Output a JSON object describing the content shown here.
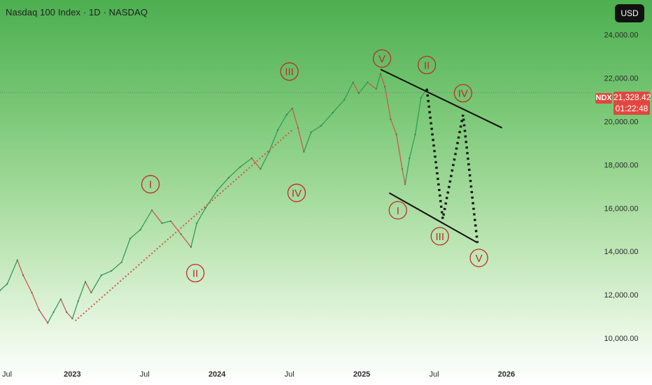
{
  "header": {
    "title": "Nasdaq 100 Index · 1D · NASDAQ",
    "currency_button": "USD"
  },
  "price_tag": {
    "symbol": "NDX",
    "last_price": "21,328.42",
    "countdown": "01:22:48",
    "color": "#e0473f"
  },
  "chart_data": {
    "type": "line",
    "title": "Nasdaq 100 Index · 1D · NASDAQ",
    "ylim": [
      9000,
      25600
    ],
    "xlim": [
      2022.5,
      2026.6
    ],
    "y_ticks": [
      {
        "value": 10000,
        "label": "10,000.00"
      },
      {
        "value": 12000,
        "label": "12,000.00"
      },
      {
        "value": 14000,
        "label": "14,000.00"
      },
      {
        "value": 16000,
        "label": "16,000.00"
      },
      {
        "value": 18000,
        "label": "18,000.00"
      },
      {
        "value": 20000,
        "label": "20,000.00"
      },
      {
        "value": 22000,
        "label": "22,000.00"
      },
      {
        "value": 24000,
        "label": "24,000.00"
      }
    ],
    "x_ticks": [
      {
        "value": 2022.5,
        "label": "Jul"
      },
      {
        "value": 2023.0,
        "label": "2023"
      },
      {
        "value": 2023.5,
        "label": "Jul"
      },
      {
        "value": 2024.0,
        "label": "2024"
      },
      {
        "value": 2024.5,
        "label": "Jul"
      },
      {
        "value": 2025.0,
        "label": "2025"
      },
      {
        "value": 2025.5,
        "label": "Jul"
      },
      {
        "value": 2026.0,
        "label": "2026"
      }
    ],
    "series": [
      {
        "points": [
          [
            2022.5,
            12200
          ],
          [
            2022.55,
            12500
          ],
          [
            2022.62,
            13600
          ],
          [
            2022.66,
            12900
          ],
          [
            2022.72,
            12100
          ],
          [
            2022.77,
            11300
          ],
          [
            2022.83,
            10700
          ],
          [
            2022.87,
            11200
          ],
          [
            2022.92,
            11800
          ],
          [
            2022.96,
            11200
          ],
          [
            2023.0,
            10900
          ],
          [
            2023.04,
            11700
          ],
          [
            2023.09,
            12600
          ],
          [
            2023.13,
            12100
          ],
          [
            2023.2,
            12900
          ],
          [
            2023.27,
            13100
          ],
          [
            2023.34,
            13500
          ],
          [
            2023.4,
            14600
          ],
          [
            2023.47,
            15000
          ],
          [
            2023.55,
            15900
          ],
          [
            2023.62,
            15300
          ],
          [
            2023.68,
            15400
          ],
          [
            2023.75,
            14800
          ],
          [
            2023.82,
            14200
          ],
          [
            2023.86,
            15300
          ],
          [
            2023.92,
            16000
          ],
          [
            2024.0,
            16800
          ],
          [
            2024.08,
            17400
          ],
          [
            2024.16,
            17900
          ],
          [
            2024.24,
            18300
          ],
          [
            2024.3,
            17800
          ],
          [
            2024.36,
            18600
          ],
          [
            2024.42,
            19600
          ],
          [
            2024.48,
            20300
          ],
          [
            2024.52,
            20600
          ],
          [
            2024.56,
            19700
          ],
          [
            2024.6,
            18600
          ],
          [
            2024.65,
            19500
          ],
          [
            2024.72,
            19800
          ],
          [
            2024.8,
            20400
          ],
          [
            2024.88,
            21000
          ],
          [
            2024.94,
            21800
          ],
          [
            2024.98,
            21300
          ],
          [
            2025.04,
            21800
          ],
          [
            2025.1,
            21500
          ],
          [
            2025.13,
            22200
          ],
          [
            2025.16,
            21600
          ],
          [
            2025.2,
            20100
          ],
          [
            2025.24,
            19400
          ],
          [
            2025.28,
            17800
          ],
          [
            2025.3,
            17100
          ],
          [
            2025.33,
            18300
          ],
          [
            2025.37,
            19400
          ],
          [
            2025.41,
            21100
          ],
          [
            2025.45,
            21500
          ]
        ]
      }
    ],
    "last_price": 21328.42,
    "annotations": [
      {
        "kind": "trendline-dotted",
        "color": "#d0574f",
        "points": [
          [
            2023.02,
            10800
          ],
          [
            2024.52,
            19600
          ]
        ]
      },
      {
        "kind": "channel-upper",
        "color": "#111111",
        "points": [
          [
            2025.13,
            22400
          ],
          [
            2025.97,
            19700
          ]
        ]
      },
      {
        "kind": "channel-lower",
        "color": "#111111",
        "points": [
          [
            2025.19,
            16700
          ],
          [
            2025.8,
            14400
          ]
        ]
      },
      {
        "kind": "projection-dotted",
        "color": "#111111",
        "points": [
          [
            2025.45,
            21500
          ],
          [
            2025.56,
            15500
          ],
          [
            2025.7,
            20300
          ],
          [
            2025.8,
            14400
          ]
        ]
      }
    ],
    "wave_labels": [
      {
        "text": "I",
        "x": 2023.54,
        "y": 17100
      },
      {
        "text": "II",
        "x": 2023.85,
        "y": 13000
      },
      {
        "text": "III",
        "x": 2024.5,
        "y": 22300
      },
      {
        "text": "IV",
        "x": 2024.55,
        "y": 16700
      },
      {
        "text": "V",
        "x": 2025.14,
        "y": 22900
      },
      {
        "text": "II",
        "x": 2025.45,
        "y": 22600
      },
      {
        "text": "IV",
        "x": 2025.7,
        "y": 21300
      },
      {
        "text": "I",
        "x": 2025.25,
        "y": 15900
      },
      {
        "text": "III",
        "x": 2025.54,
        "y": 14700
      },
      {
        "text": "V",
        "x": 2025.81,
        "y": 13700
      }
    ],
    "wave_label_color": "#b92f29",
    "grid": false
  }
}
